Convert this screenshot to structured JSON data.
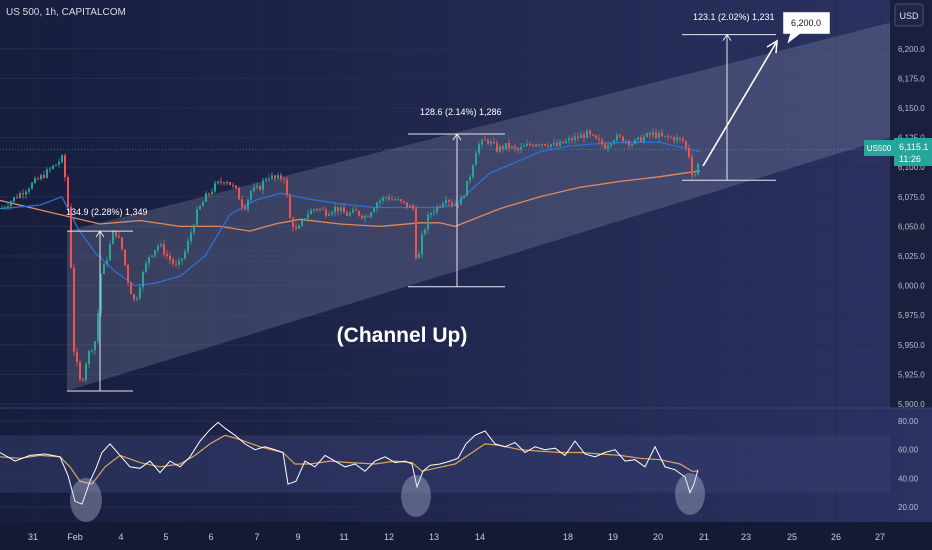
{
  "header": {
    "symbol_title": "US 500, 1h, CAPITALCOM",
    "currency_button": "USD"
  },
  "price_badge": {
    "ticker": "US500",
    "price": "6,115.1",
    "countdown": "11:26",
    "color": "#26a69a"
  },
  "target_badge": {
    "label": "6,200.0"
  },
  "annotations": {
    "channel_label": "(Channel Up)",
    "measure_1": "134.9 (2.28%) 1,349",
    "measure_2": "128.6 (2.14%) 1,286",
    "measure_3": "123.1 (2.02%) 1,231"
  },
  "colors": {
    "up": "#26a69a",
    "down": "#ef5350",
    "ma_fast": "#2f6fd6",
    "ma_slow": "#e0895a",
    "rsi_line": "#ffffff",
    "rsi_signal": "#d9a55b",
    "channel_fill": "#c8cde6",
    "measure_line": "#e6e8ef"
  },
  "chart_data": [
    {
      "type": "candlestick",
      "title": "US 500, 1h, CAPITALCOM",
      "ylim": [
        5900,
        6225
      ],
      "yticks": [
        "5,900.0",
        "5,925.0",
        "5,950.0",
        "5,975.0",
        "6,000.0",
        "6,025.0",
        "6,050.0",
        "6,075.0",
        "6,100.0",
        "6,125.0",
        "6,150.0",
        "6,175.0",
        "6,200.0"
      ],
      "x_tick_labels": [
        "31",
        "Feb",
        "4",
        "5",
        "6",
        "7",
        "9",
        "11",
        "12",
        "13",
        "14",
        "18",
        "19",
        "20",
        "21",
        "23",
        "25",
        "26",
        "27"
      ],
      "last_price": 6115.1,
      "price_path": [
        [
          30,
          6085
        ],
        [
          45,
          6095
        ],
        [
          62,
          6108
        ],
        [
          66,
          6075
        ],
        [
          69,
          6050
        ],
        [
          72,
          5950
        ],
        [
          80,
          5915
        ],
        [
          86,
          5940
        ],
        [
          95,
          5955
        ],
        [
          100,
          6010
        ],
        [
          105,
          6020
        ],
        [
          113,
          6048
        ],
        [
          120,
          6035
        ],
        [
          128,
          6000
        ],
        [
          134,
          5985
        ],
        [
          140,
          6005
        ],
        [
          148,
          6025
        ],
        [
          158,
          6035
        ],
        [
          166,
          6025
        ],
        [
          176,
          6015
        ],
        [
          185,
          6030
        ],
        [
          195,
          6060
        ],
        [
          205,
          6075
        ],
        [
          215,
          6085
        ],
        [
          225,
          6090
        ],
        [
          235,
          6080
        ],
        [
          243,
          6065
        ],
        [
          250,
          6080
        ],
        [
          258,
          6082
        ],
        [
          266,
          6093
        ],
        [
          275,
          6090
        ],
        [
          284,
          6092
        ],
        [
          288,
          6058
        ],
        [
          296,
          6045
        ],
        [
          305,
          6060
        ],
        [
          315,
          6066
        ],
        [
          325,
          6062
        ],
        [
          335,
          6066
        ],
        [
          345,
          6060
        ],
        [
          355,
          6062
        ],
        [
          365,
          6058
        ],
        [
          375,
          6070
        ],
        [
          385,
          6075
        ],
        [
          395,
          6072
        ],
        [
          405,
          6068
        ],
        [
          412,
          6065
        ],
        [
          416,
          6013
        ],
        [
          420,
          6038
        ],
        [
          428,
          6060
        ],
        [
          438,
          6068
        ],
        [
          445,
          6075
        ],
        [
          452,
          6068
        ],
        [
          460,
          6072
        ],
        [
          468,
          6090
        ],
        [
          476,
          6118
        ],
        [
          486,
          6123
        ],
        [
          496,
          6115
        ],
        [
          506,
          6118
        ],
        [
          516,
          6114
        ],
        [
          526,
          6118
        ],
        [
          536,
          6121
        ],
        [
          546,
          6120
        ],
        [
          556,
          6118
        ],
        [
          566,
          6122
        ],
        [
          576,
          6125
        ],
        [
          586,
          6128
        ],
        [
          596,
          6122
        ],
        [
          604,
          6118
        ],
        [
          612,
          6125
        ],
        [
          622,
          6124
        ],
        [
          632,
          6120
        ],
        [
          642,
          6125
        ],
        [
          652,
          6128
        ],
        [
          662,
          6125
        ],
        [
          672,
          6125
        ],
        [
          682,
          6122
        ],
        [
          688,
          6110
        ],
        [
          692,
          6091
        ],
        [
          696,
          6098
        ],
        [
          700,
          6115
        ]
      ],
      "ma_fast": [
        [
          0,
          6065
        ],
        [
          40,
          6068
        ],
        [
          62,
          6075
        ],
        [
          78,
          6048
        ],
        [
          95,
          6028
        ],
        [
          115,
          6012
        ],
        [
          135,
          6000
        ],
        [
          155,
          6002
        ],
        [
          180,
          6008
        ],
        [
          205,
          6025
        ],
        [
          230,
          6060
        ],
        [
          255,
          6072
        ],
        [
          280,
          6078
        ],
        [
          310,
          6073
        ],
        [
          340,
          6069
        ],
        [
          375,
          6066
        ],
        [
          410,
          6066
        ],
        [
          440,
          6066
        ],
        [
          455,
          6068
        ],
        [
          470,
          6080
        ],
        [
          490,
          6095
        ],
        [
          510,
          6102
        ],
        [
          540,
          6113
        ],
        [
          570,
          6118
        ],
        [
          600,
          6120
        ],
        [
          630,
          6121
        ],
        [
          660,
          6121
        ],
        [
          685,
          6116
        ],
        [
          700,
          6113
        ]
      ],
      "ma_slow": [
        [
          0,
          6072
        ],
        [
          60,
          6060
        ],
        [
          100,
          6052
        ],
        [
          140,
          6055
        ],
        [
          180,
          6050
        ],
        [
          220,
          6050
        ],
        [
          250,
          6046
        ],
        [
          275,
          6052
        ],
        [
          300,
          6056
        ],
        [
          340,
          6052
        ],
        [
          380,
          6050
        ],
        [
          420,
          6053
        ],
        [
          440,
          6053
        ],
        [
          455,
          6050
        ],
        [
          470,
          6055
        ],
        [
          500,
          6065
        ],
        [
          540,
          6075
        ],
        [
          580,
          6083
        ],
        [
          620,
          6088
        ],
        [
          660,
          6092
        ],
        [
          700,
          6097
        ]
      ],
      "channel": {
        "upper_start": [
          67,
          6046
        ],
        "upper_end": [
          890,
          6222
        ],
        "lower_start": [
          67,
          5911
        ],
        "lower_end": [
          890,
          6125
        ]
      },
      "measures": [
        {
          "x": 100,
          "y_from": 5911,
          "y_to": 6046
        },
        {
          "x": 457,
          "y_from": 5999,
          "y_to": 6128
        },
        {
          "x": 727,
          "y_from": 6089,
          "y_to": 6212
        }
      ]
    },
    {
      "type": "line",
      "title": "",
      "ylim": [
        15,
        85
      ],
      "yticks": [
        "20.00",
        "40.00",
        "60.00",
        "80.00"
      ],
      "band": [
        30,
        70
      ],
      "series": [
        {
          "values": [
            [
              0,
              58
            ],
            [
              15,
              52
            ],
            [
              30,
              56
            ],
            [
              45,
              57
            ],
            [
              60,
              55
            ],
            [
              68,
              42
            ],
            [
              75,
              24
            ],
            [
              82,
              22
            ],
            [
              90,
              38
            ],
            [
              96,
              47
            ],
            [
              102,
              58
            ],
            [
              110,
              64
            ],
            [
              120,
              56
            ],
            [
              130,
              48
            ],
            [
              140,
              47
            ],
            [
              150,
              52
            ],
            [
              160,
              44
            ],
            [
              170,
              52
            ],
            [
              180,
              48
            ],
            [
              190,
              55
            ],
            [
              200,
              66
            ],
            [
              210,
              74
            ],
            [
              218,
              79
            ],
            [
              225,
              75
            ],
            [
              235,
              70
            ],
            [
              245,
              64
            ],
            [
              255,
              60
            ],
            [
              265,
              62
            ],
            [
              275,
              60
            ],
            [
              283,
              58
            ],
            [
              288,
              36
            ],
            [
              296,
              38
            ],
            [
              305,
              52
            ],
            [
              315,
              48
            ],
            [
              325,
              56
            ],
            [
              335,
              52
            ],
            [
              345,
              48
            ],
            [
              355,
              50
            ],
            [
              365,
              45
            ],
            [
              375,
              52
            ],
            [
              385,
              55
            ],
            [
              395,
              51
            ],
            [
              405,
              52
            ],
            [
              412,
              50
            ],
            [
              417,
              34
            ],
            [
              423,
              45
            ],
            [
              430,
              49
            ],
            [
              440,
              50
            ],
            [
              450,
              52
            ],
            [
              458,
              54
            ],
            [
              466,
              64
            ],
            [
              475,
              70
            ],
            [
              485,
              73
            ],
            [
              495,
              64
            ],
            [
              505,
              62
            ],
            [
              515,
              65
            ],
            [
              525,
              58
            ],
            [
              535,
              62
            ],
            [
              545,
              60
            ],
            [
              555,
              61
            ],
            [
              565,
              56
            ],
            [
              575,
              66
            ],
            [
              585,
              57
            ],
            [
              595,
              55
            ],
            [
              605,
              58
            ],
            [
              615,
              60
            ],
            [
              625,
              52
            ],
            [
              635,
              53
            ],
            [
              645,
              48
            ],
            [
              655,
              62
            ],
            [
              665,
              48
            ],
            [
              675,
              46
            ],
            [
              685,
              41
            ],
            [
              690,
              30
            ],
            [
              694,
              36
            ],
            [
              698,
              46
            ]
          ]
        },
        {
          "values": [
            [
              0,
              55
            ],
            [
              20,
              54
            ],
            [
              40,
              56
            ],
            [
              60,
              55
            ],
            [
              70,
              48
            ],
            [
              80,
              38
            ],
            [
              92,
              36
            ],
            [
              105,
              48
            ],
            [
              120,
              56
            ],
            [
              140,
              51
            ],
            [
              160,
              48
            ],
            [
              180,
              50
            ],
            [
              195,
              56
            ],
            [
              210,
              64
            ],
            [
              225,
              70
            ],
            [
              240,
              67
            ],
            [
              260,
              62
            ],
            [
              283,
              58
            ],
            [
              295,
              50
            ],
            [
              310,
              50
            ],
            [
              330,
              52
            ],
            [
              350,
              51
            ],
            [
              375,
              50
            ],
            [
              395,
              52
            ],
            [
              412,
              51
            ],
            [
              422,
              45
            ],
            [
              435,
              47
            ],
            [
              455,
              50
            ],
            [
              470,
              57
            ],
            [
              485,
              64
            ],
            [
              500,
              63
            ],
            [
              520,
              60
            ],
            [
              540,
              59
            ],
            [
              560,
              58
            ],
            [
              580,
              58
            ],
            [
              600,
              57
            ],
            [
              620,
              56
            ],
            [
              640,
              54
            ],
            [
              660,
              53
            ],
            [
              680,
              50
            ],
            [
              692,
              45
            ],
            [
              698,
              45
            ]
          ]
        }
      ]
    }
  ]
}
